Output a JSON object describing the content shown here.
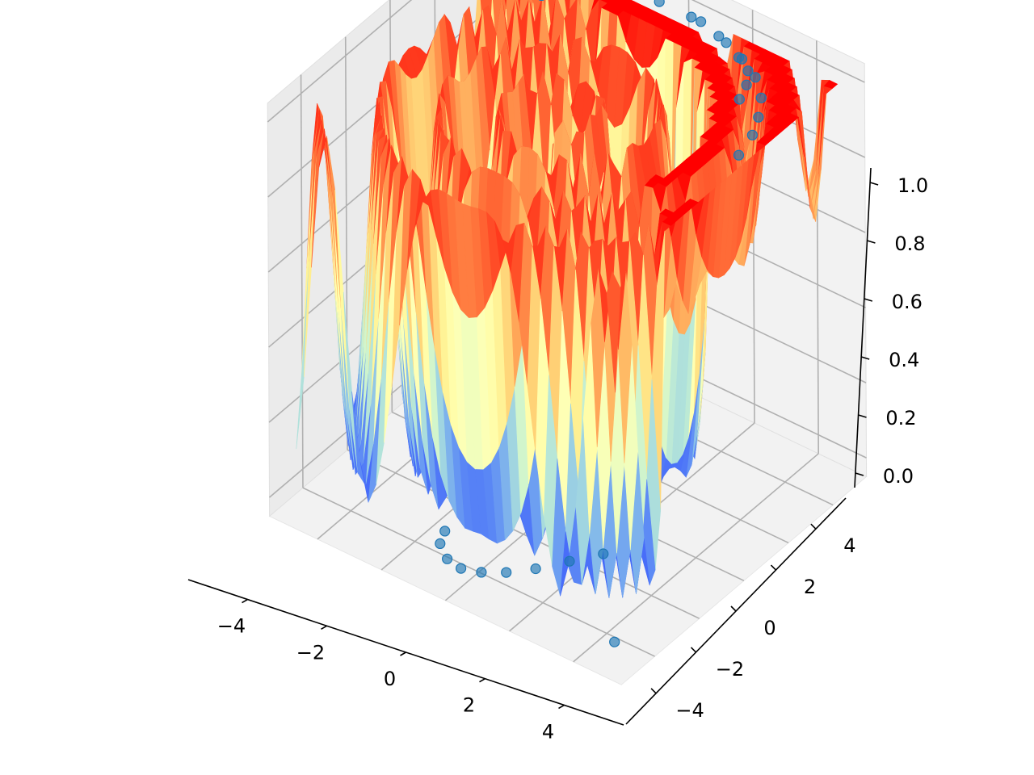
{
  "chart_data": {
    "type": "surface3d",
    "title": "",
    "xlabel": "",
    "ylabel": "",
    "zlabel": "",
    "xlim": [
      -5.5,
      5.5
    ],
    "ylim": [
      -5.5,
      5.5
    ],
    "zlim": [
      -0.05,
      1.05
    ],
    "x_ticks": [
      "−4",
      "−2",
      "0",
      "2",
      "4"
    ],
    "x_tick_values": [
      -4,
      -2,
      0,
      2,
      4
    ],
    "y_ticks": [
      "−4",
      "−2",
      "0",
      "2",
      "4"
    ],
    "y_tick_values": [
      -4,
      -2,
      0,
      2,
      4
    ],
    "z_ticks": [
      "0.0",
      "0.2",
      "0.4",
      "0.6",
      "0.8",
      "1.0"
    ],
    "z_tick_values": [
      0.0,
      0.2,
      0.4,
      0.6,
      0.8,
      1.0
    ],
    "grid": true,
    "colormap": "rainbow",
    "colormap_low": "#8000ff",
    "colormap_high": "#ff0000",
    "point_color": "#1f77b4",
    "pane_color": "#f2f2f2",
    "surface": {
      "form": "spiral ridge surface over a square domain, z in [0, 1]",
      "x_range": [
        -5,
        5
      ],
      "y_range": [
        -5,
        5
      ],
      "z_min": 0.0,
      "z_max": 1.0
    },
    "scatter_points": {
      "count": 28,
      "x": [
        -4.8,
        4.8,
        -3.0,
        -1.5,
        -0.5,
        0.5,
        1.5,
        2.5,
        3.2,
        3.8,
        4.2,
        4.5,
        4.7,
        -1.2,
        -1.0,
        -0.5,
        0.0,
        0.5,
        1.0,
        1.5,
        2.0,
        2.5,
        0.8,
        1.8,
        2.4,
        2.9,
        3.2,
        3.4
      ],
      "y": [
        4.8,
        -4.8,
        3.2,
        4.6,
        4.9,
        4.9,
        4.7,
        4.3,
        3.9,
        3.3,
        2.6,
        1.9,
        1.0,
        -3.8,
        -4.3,
        -4.7,
        -4.8,
        -4.6,
        -4.2,
        -3.6,
        -2.8,
        -2.0,
        4.9,
        4.6,
        4.3,
        4.0,
        3.5,
        2.9
      ],
      "z": [
        1.0,
        0.0,
        1.0,
        1.0,
        1.0,
        1.0,
        1.0,
        1.0,
        1.0,
        1.0,
        1.0,
        1.0,
        1.0,
        0.0,
        0.0,
        0.0,
        0.0,
        0.0,
        0.0,
        0.0,
        0.0,
        0.0,
        1.0,
        1.0,
        1.0,
        1.0,
        1.0,
        1.0
      ]
    }
  }
}
